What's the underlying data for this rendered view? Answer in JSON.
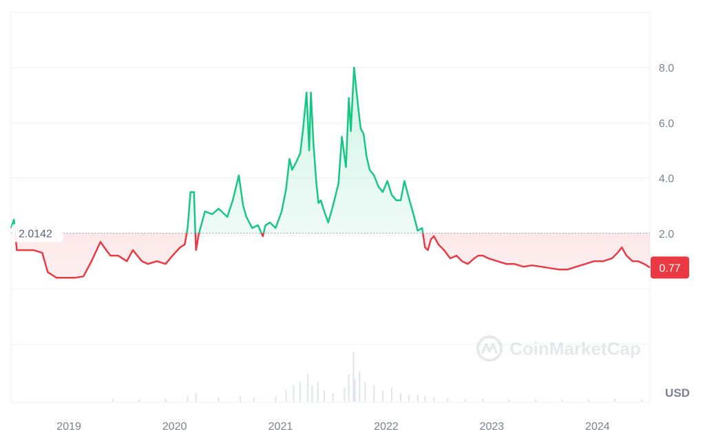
{
  "chart_data": {
    "type": "area",
    "x_axis": {
      "ticks": [
        "2019",
        "2020",
        "2021",
        "2022",
        "2023",
        "2024"
      ]
    },
    "y_axis": {
      "ticks": [
        8.0,
        6.0,
        4.0,
        2.0
      ],
      "tick_labels": [
        "8.0",
        "6.0",
        "4.0",
        "2.0"
      ],
      "ylim": [
        -4.2,
        10.0
      ],
      "position": "right"
    },
    "currency_label": "USD",
    "baseline": {
      "value": 2.0142,
      "label": "2.0142"
    },
    "current_price": {
      "value": 0.77,
      "label": "0.77"
    },
    "series": [
      {
        "x": [
          "2018-06-15",
          "2018-06-25",
          "2018-07-05",
          "2018-07-25",
          "2018-08-15",
          "2018-09-01",
          "2018-10-01",
          "2018-10-20",
          "2018-11-20",
          "2018-12-01",
          "2018-12-20",
          "2019-01-20",
          "2019-02-20",
          "2019-03-20",
          "2019-04-20",
          "2019-05-10",
          "2019-05-25",
          "2019-06-20",
          "2019-07-20",
          "2019-08-10",
          "2019-09-10",
          "2019-10-01",
          "2019-11-01",
          "2019-12-01",
          "2019-12-25",
          "2020-01-20",
          "2020-02-05",
          "2020-02-15",
          "2020-02-25",
          "2020-03-08",
          "2020-03-15",
          "2020-03-25",
          "2020-04-15",
          "2020-05-10",
          "2020-06-01",
          "2020-07-01",
          "2020-07-20",
          "2020-08-10",
          "2020-08-25",
          "2020-09-05",
          "2020-09-25",
          "2020-10-15",
          "2020-11-01",
          "2020-11-10",
          "2020-11-25",
          "2020-12-15",
          "2021-01-05",
          "2021-01-20",
          "2021-02-01",
          "2021-02-10",
          "2021-02-25",
          "2021-03-10",
          "2021-03-20",
          "2021-04-01",
          "2021-04-10",
          "2021-04-16",
          "2021-04-25",
          "2021-05-05",
          "2021-05-12",
          "2021-05-20",
          "2021-06-01",
          "2021-06-15",
          "2021-07-01",
          "2021-07-20",
          "2021-08-01",
          "2021-08-15",
          "2021-08-25",
          "2021-09-01",
          "2021-09-07",
          "2021-09-12",
          "2021-09-20",
          "2021-09-28",
          "2021-10-05",
          "2021-10-15",
          "2021-10-25",
          "2021-11-05",
          "2021-11-20",
          "2021-12-05",
          "2021-12-20",
          "2022-01-05",
          "2022-01-20",
          "2022-02-05",
          "2022-02-20",
          "2022-03-05",
          "2022-03-20",
          "2022-04-05",
          "2022-04-20",
          "2022-05-05",
          "2022-05-15",
          "2022-05-25",
          "2022-06-05",
          "2022-06-15",
          "2022-07-01",
          "2022-07-20",
          "2022-08-10",
          "2022-09-01",
          "2022-09-20",
          "2022-10-10",
          "2022-11-01",
          "2022-11-15",
          "2022-12-01",
          "2022-12-20",
          "2023-01-20",
          "2023-02-20",
          "2023-03-20",
          "2023-04-20",
          "2023-05-20",
          "2023-06-20",
          "2023-07-20",
          "2023-08-20",
          "2023-09-20",
          "2023-10-20",
          "2023-11-20",
          "2023-12-20",
          "2024-01-20",
          "2024-02-20",
          "2024-03-10",
          "2024-03-25",
          "2024-04-10",
          "2024-05-01",
          "2024-05-20",
          "2024-06-10",
          "2024-06-30"
        ],
        "y": [
          2.2,
          2.5,
          1.4,
          1.4,
          1.4,
          1.4,
          1.3,
          0.6,
          0.4,
          0.4,
          0.4,
          0.4,
          0.45,
          1.0,
          1.7,
          1.4,
          1.2,
          1.2,
          1.0,
          1.4,
          1.0,
          0.9,
          1.0,
          0.9,
          1.2,
          1.5,
          1.6,
          2.2,
          3.5,
          3.5,
          1.4,
          2.0,
          2.8,
          2.7,
          2.9,
          2.6,
          3.2,
          4.1,
          3.0,
          2.6,
          2.2,
          2.3,
          1.9,
          2.3,
          2.4,
          2.2,
          2.8,
          3.6,
          4.7,
          4.3,
          4.6,
          4.9,
          5.8,
          7.1,
          5.0,
          7.1,
          5.2,
          3.8,
          3.1,
          3.2,
          2.8,
          2.4,
          3.0,
          3.8,
          5.5,
          4.4,
          6.9,
          5.7,
          7.0,
          8.0,
          7.2,
          6.4,
          5.8,
          5.6,
          4.8,
          4.3,
          4.1,
          3.7,
          3.5,
          3.9,
          3.4,
          3.2,
          3.2,
          3.9,
          3.3,
          2.7,
          2.1,
          2.2,
          1.5,
          1.4,
          1.8,
          1.9,
          1.6,
          1.4,
          1.1,
          1.2,
          1.0,
          0.9,
          1.1,
          1.2,
          1.2,
          1.1,
          1.0,
          0.9,
          0.9,
          0.8,
          0.85,
          0.8,
          0.75,
          0.7,
          0.7,
          0.8,
          0.9,
          1.0,
          1.0,
          1.1,
          1.3,
          1.5,
          1.2,
          1.0,
          1.0,
          0.9,
          0.77
        ]
      }
    ],
    "colors": {
      "up": "#16c784",
      "down": "#ea3943",
      "grid": "#eff2f5",
      "axis_text": "#7b8190"
    },
    "volume": {
      "x": [
        "2019-06-01",
        "2019-09-01",
        "2019-12-01",
        "2020-02-15",
        "2020-03-15",
        "2020-06-01",
        "2020-08-15",
        "2020-10-01",
        "2020-12-15",
        "2021-01-20",
        "2021-02-15",
        "2021-03-10",
        "2021-04-05",
        "2021-04-20",
        "2021-05-10",
        "2021-06-01",
        "2021-07-01",
        "2021-08-10",
        "2021-08-25",
        "2021-09-10",
        "2021-09-15",
        "2021-10-01",
        "2021-10-20",
        "2021-11-20",
        "2021-12-20",
        "2022-01-20",
        "2022-02-20",
        "2022-03-20",
        "2022-04-20",
        "2022-05-15",
        "2022-06-15",
        "2022-08-01",
        "2022-10-01",
        "2022-12-01",
        "2023-03-01",
        "2023-06-01",
        "2023-09-01",
        "2023-12-01",
        "2024-03-01",
        "2024-06-01"
      ],
      "values": [
        0.05,
        0.04,
        0.05,
        0.1,
        0.15,
        0.08,
        0.1,
        0.08,
        0.1,
        0.2,
        0.3,
        0.35,
        0.5,
        0.3,
        0.35,
        0.2,
        0.15,
        0.25,
        0.5,
        0.9,
        0.4,
        0.55,
        0.35,
        0.3,
        0.2,
        0.25,
        0.15,
        0.12,
        0.12,
        0.1,
        0.08,
        0.06,
        0.05,
        0.05,
        0.04,
        0.04,
        0.04,
        0.04,
        0.05,
        0.04
      ]
    },
    "watermark": "CoinMarketCap"
  }
}
